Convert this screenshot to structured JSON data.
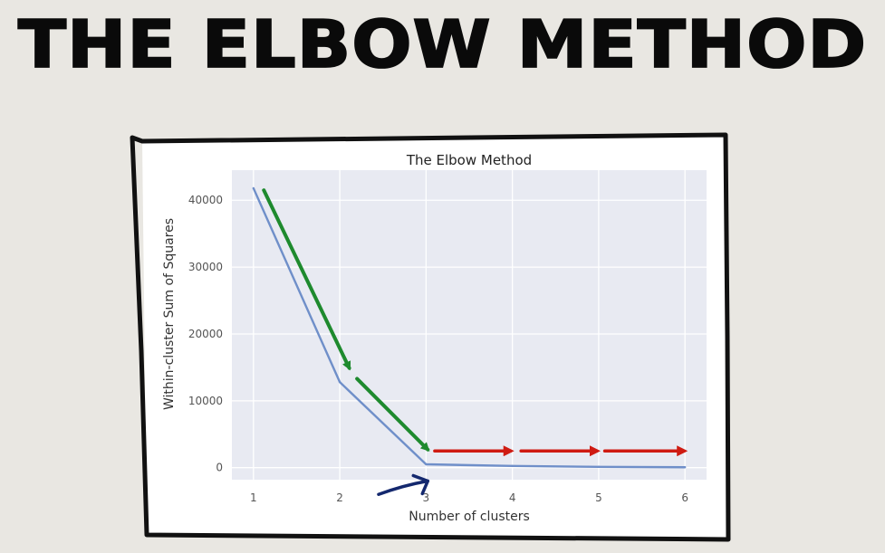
{
  "slide": {
    "title": "THE ELBOW METHOD"
  },
  "chart_data": {
    "type": "line",
    "title": "The Elbow Method",
    "xlabel": "Number of clusters",
    "ylabel": "Within-cluster Sum of Squares",
    "x": [
      1,
      2,
      3,
      4,
      5,
      6
    ],
    "series": [
      {
        "values": [
          41800,
          12800,
          500,
          250,
          120,
          60
        ]
      }
    ],
    "xticks": [
      "1",
      "2",
      "3",
      "4",
      "5",
      "6"
    ],
    "yticks": [
      "0",
      "10000",
      "20000",
      "30000",
      "40000"
    ],
    "xlim": [
      0.75,
      6.25
    ],
    "ylim": [
      -1800,
      44500
    ],
    "grid": true,
    "colors": {
      "line": "#6f8fc9",
      "plot_bg": "#e8eaf2",
      "grid": "#ffffff",
      "green_arrow": "#1e8a2e",
      "red_arrow": "#cf1b12",
      "blue_arrow": "#14286e",
      "frame": "#111111"
    },
    "annotations": {
      "green_arrows": [
        {
          "from": [
            1.12,
            41500
          ],
          "to": [
            2.11,
            14900
          ]
        },
        {
          "from": [
            2.2,
            13300
          ],
          "to": [
            3.02,
            2700
          ]
        }
      ],
      "red_arrows": [
        {
          "from": [
            3.1,
            2500
          ],
          "to": [
            3.98,
            2500
          ]
        },
        {
          "from": [
            4.1,
            2500
          ],
          "to": [
            4.98,
            2500
          ]
        },
        {
          "from": [
            5.07,
            2500
          ],
          "to": [
            5.99,
            2500
          ]
        }
      ],
      "elbow_marker": {
        "from": [
          2.45,
          -4000
        ],
        "to": [
          3.02,
          -2000
        ]
      }
    }
  }
}
